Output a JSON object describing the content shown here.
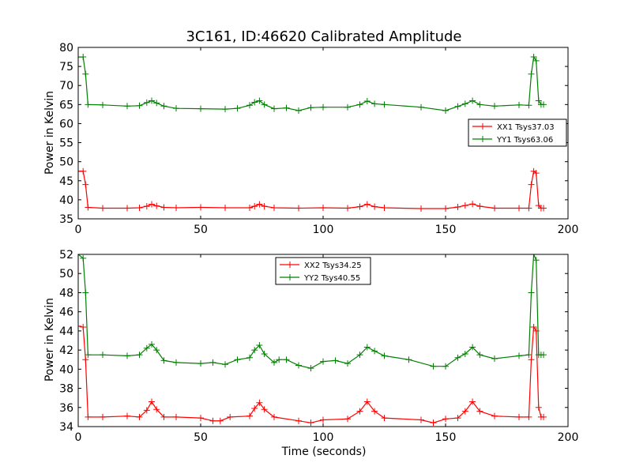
{
  "chart_data": [
    {
      "type": "line",
      "title": "3C161, ID:46620 Calibrated Amplitude",
      "xlabel": "",
      "ylabel": "Power in Kelvin",
      "xlim": [
        0,
        200
      ],
      "ylim": [
        35,
        80
      ],
      "xticks": [
        "0",
        "50",
        "100",
        "150",
        "200"
      ],
      "yticks": [
        "35",
        "40",
        "45",
        "50",
        "55",
        "60",
        "65",
        "70",
        "75",
        "80"
      ],
      "legend_position": "right",
      "series": [
        {
          "name": "XX1 Tsys37.03",
          "color": "#ff0000",
          "marker": "+",
          "x": [
            0,
            2,
            3,
            4,
            10,
            20,
            25,
            28,
            30,
            32,
            35,
            40,
            50,
            60,
            70,
            72,
            74,
            76,
            80,
            90,
            100,
            110,
            115,
            118,
            121,
            125,
            140,
            150,
            155,
            158,
            161,
            164,
            170,
            180,
            184,
            185,
            186,
            187,
            188,
            189,
            190
          ],
          "y": [
            47.5,
            47.5,
            44,
            38,
            37.8,
            37.8,
            37.9,
            38.3,
            38.8,
            38.4,
            38,
            37.9,
            38,
            37.9,
            37.9,
            38.3,
            38.8,
            38.3,
            37.9,
            37.8,
            37.9,
            37.8,
            38.2,
            38.8,
            38.2,
            37.9,
            37.7,
            37.7,
            38.1,
            38.5,
            38.9,
            38.3,
            37.8,
            37.8,
            37.8,
            44,
            47.5,
            47,
            38.5,
            37.8,
            37.8
          ]
        },
        {
          "name": "YY1 Tsys63.06",
          "color": "#008000",
          "marker": "+",
          "x": [
            0,
            2,
            3,
            4,
            10,
            20,
            25,
            28,
            30,
            32,
            35,
            40,
            50,
            60,
            65,
            70,
            72,
            74,
            76,
            80,
            85,
            90,
            95,
            100,
            110,
            115,
            118,
            121,
            125,
            140,
            150,
            155,
            158,
            161,
            164,
            170,
            180,
            184,
            185,
            186,
            187,
            188,
            189,
            190
          ],
          "y": [
            77.5,
            77.5,
            73,
            65,
            64.9,
            64.6,
            64.7,
            65.5,
            66,
            65.4,
            64.6,
            64,
            63.9,
            63.8,
            64,
            64.8,
            65.6,
            66,
            65,
            63.9,
            64.1,
            63.4,
            64.2,
            64.3,
            64.3,
            65,
            65.9,
            65.2,
            65,
            64.3,
            63.4,
            64.5,
            65.2,
            66,
            65,
            64.6,
            64.9,
            64.8,
            73,
            77.5,
            76.5,
            66,
            65,
            65
          ]
        }
      ]
    },
    {
      "type": "line",
      "title": "",
      "xlabel": "Time (seconds)",
      "ylabel": "Power in Kelvin",
      "xlim": [
        0,
        200
      ],
      "ylim": [
        34,
        52
      ],
      "xticks": [
        "0",
        "50",
        "100",
        "150",
        "200"
      ],
      "yticks": [
        "34",
        "36",
        "38",
        "40",
        "42",
        "44",
        "46",
        "48",
        "50",
        "52"
      ],
      "legend_position": "top-center",
      "series": [
        {
          "name": "XX2 Tsys34.25",
          "color": "#ff0000",
          "marker": "+",
          "x": [
            0,
            2,
            3,
            4,
            10,
            20,
            25,
            28,
            30,
            32,
            35,
            40,
            50,
            55,
            58,
            62,
            70,
            72,
            74,
            76,
            80,
            90,
            95,
            100,
            110,
            115,
            118,
            121,
            125,
            140,
            145,
            150,
            155,
            158,
            161,
            164,
            170,
            180,
            184,
            185,
            186,
            187,
            188,
            189,
            190
          ],
          "y": [
            44.5,
            44.4,
            41,
            35,
            35,
            35.1,
            35,
            35.7,
            36.6,
            35.8,
            35,
            35,
            34.9,
            34.6,
            34.6,
            35,
            35.1,
            35.9,
            36.5,
            35.8,
            35,
            34.6,
            34.4,
            34.7,
            34.8,
            35.6,
            36.6,
            35.6,
            34.9,
            34.7,
            34.4,
            34.8,
            34.9,
            35.6,
            36.6,
            35.6,
            35.1,
            35,
            35,
            41,
            44.4,
            44,
            36,
            35,
            35
          ]
        },
        {
          "name": "YY2 Tsys40.55",
          "color": "#008000",
          "marker": "+",
          "x": [
            0,
            2,
            3,
            4,
            10,
            20,
            25,
            28,
            30,
            32,
            35,
            40,
            50,
            55,
            60,
            65,
            70,
            72,
            74,
            76,
            80,
            82,
            85,
            90,
            95,
            100,
            105,
            110,
            115,
            118,
            121,
            125,
            135,
            145,
            150,
            155,
            158,
            161,
            164,
            170,
            180,
            184,
            185,
            186,
            187,
            188,
            189,
            190
          ],
          "y": [
            52,
            51.6,
            48,
            41.5,
            41.5,
            41.4,
            41.5,
            42.2,
            42.6,
            42,
            40.9,
            40.7,
            40.6,
            40.7,
            40.5,
            41,
            41.2,
            42,
            42.5,
            41.6,
            40.7,
            41,
            41,
            40.4,
            40.1,
            40.8,
            40.9,
            40.6,
            41.5,
            42.3,
            41.9,
            41.4,
            41,
            40.3,
            40.3,
            41.2,
            41.6,
            42.3,
            41.5,
            41.1,
            41.4,
            41.5,
            48,
            52,
            51.4,
            41.5,
            41.5,
            41.5
          ]
        }
      ]
    }
  ]
}
